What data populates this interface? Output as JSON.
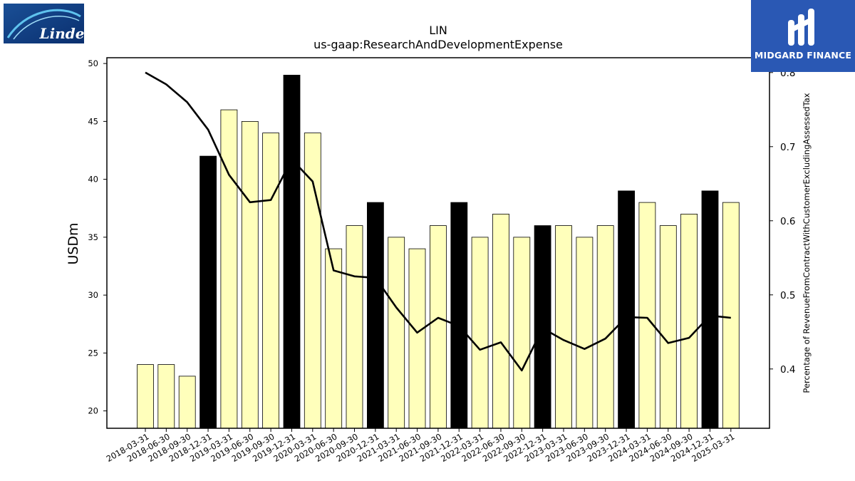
{
  "branding": {
    "company_logo_text": "Linde",
    "publisher_name": "MIDGARD FINANCE"
  },
  "chart_data": {
    "type": "bar",
    "title": "LIN",
    "subtitle": "us-gaap:ResearchAndDevelopmentExpense",
    "ylabel": "USDm",
    "y2label": "Percentage of RevenueFromContractWithCustomerExcludingAssessedTax",
    "ylim": [
      18.5,
      50.5
    ],
    "y2lim": [
      0.32,
      0.82
    ],
    "yticks": [
      20,
      25,
      30,
      35,
      40,
      45,
      50
    ],
    "y2ticks": [
      0.4,
      0.5,
      0.6,
      0.7,
      0.8
    ],
    "categories": [
      "2018-03-31",
      "2018-06-30",
      "2018-09-30",
      "2018-12-31",
      "2019-03-31",
      "2019-06-30",
      "2019-09-30",
      "2019-12-31",
      "2020-03-31",
      "2020-06-30",
      "2020-09-30",
      "2020-12-31",
      "2021-03-31",
      "2021-06-30",
      "2021-09-30",
      "2021-12-31",
      "2022-03-31",
      "2022-06-30",
      "2022-09-30",
      "2022-12-31",
      "2023-03-31",
      "2023-06-30",
      "2023-09-30",
      "2023-12-31",
      "2024-03-31",
      "2024-06-30",
      "2024-09-30",
      "2024-12-31",
      "2025-03-31"
    ],
    "series": [
      {
        "kind": "bar",
        "values": [
          24,
          24,
          23,
          42,
          46,
          45,
          44,
          49,
          44,
          34,
          36,
          38,
          35,
          34,
          36,
          38,
          35,
          37,
          35,
          36,
          36,
          35,
          36,
          39,
          38,
          36,
          37,
          39,
          38
        ],
        "highlight_year_end": [
          false,
          false,
          false,
          true,
          false,
          false,
          false,
          true,
          false,
          false,
          false,
          true,
          false,
          false,
          false,
          true,
          false,
          false,
          false,
          true,
          false,
          false,
          false,
          true,
          false,
          false,
          false,
          true,
          false
        ],
        "color": "#ffffbb",
        "highlight_color": "#000000"
      },
      {
        "kind": "line",
        "axis": "right",
        "values": [
          0.8,
          0.784,
          0.76,
          0.723,
          0.662,
          0.625,
          0.628,
          0.683,
          0.653,
          0.533,
          0.525,
          0.523,
          0.483,
          0.449,
          0.469,
          0.458,
          0.426,
          0.436,
          0.398,
          0.455,
          0.439,
          0.427,
          0.441,
          0.47,
          0.469,
          0.435,
          0.442,
          0.472,
          0.469
        ],
        "color": "#000000"
      }
    ]
  }
}
